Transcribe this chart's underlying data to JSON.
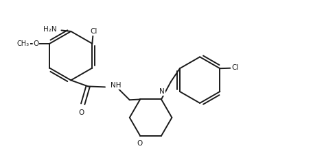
{
  "background_color": "#ffffff",
  "line_color": "#1a1a1a",
  "line_width": 1.4,
  "font_size": 7.5,
  "figsize": [
    4.72,
    2.24
  ],
  "dpi": 100,
  "xlim": [
    0,
    9.44
  ],
  "ylim": [
    0,
    4.48
  ]
}
